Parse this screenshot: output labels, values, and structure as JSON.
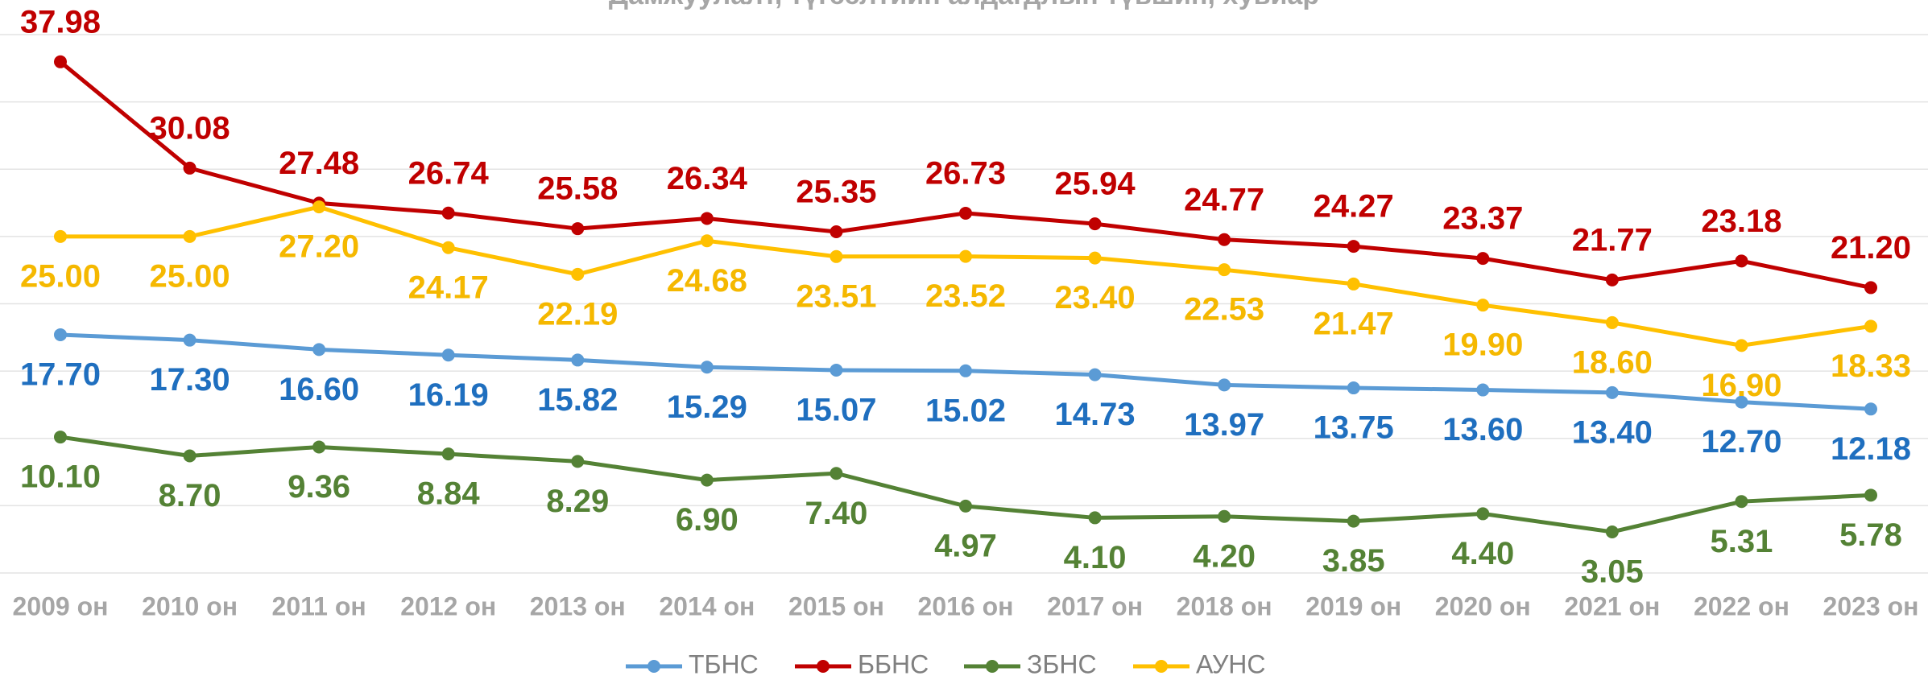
{
  "chart_data": {
    "type": "line",
    "title": "Дамжуулалт, түгээлтийн алдагдлын түвшин, хувиар",
    "categories": [
      "2009 он",
      "2010 он",
      "2011 он",
      "2012 он",
      "2013 он",
      "2014 он",
      "2015 он",
      "2016 он",
      "2017 он",
      "2018 он",
      "2019 он",
      "2020 он",
      "2021 он",
      "2022 он",
      "2023 он"
    ],
    "series": [
      {
        "name": "ТБНС",
        "color": "#5b9bd5",
        "label_color": "#1f6fbf",
        "values": [
          17.7,
          17.3,
          16.6,
          16.19,
          15.82,
          15.29,
          15.07,
          15.02,
          14.73,
          13.97,
          13.75,
          13.6,
          13.4,
          12.7,
          12.18
        ],
        "value_labels": [
          "17.70",
          "17.30",
          "16.60",
          "16.19",
          "15.82",
          "15.29",
          "15.07",
          "15.02",
          "14.73",
          "13.97",
          "13.75",
          "13.60",
          "13.40",
          "12.70",
          "12.18"
        ]
      },
      {
        "name": "ББНС",
        "color": "#c00000",
        "label_color": "#c00000",
        "values": [
          37.98,
          30.08,
          27.48,
          26.74,
          25.58,
          26.34,
          25.35,
          26.73,
          25.94,
          24.77,
          24.27,
          23.37,
          21.77,
          23.18,
          21.2
        ],
        "value_labels": [
          "37.98",
          "30.08",
          "27.48",
          "26.74",
          "25.58",
          "26.34",
          "25.35",
          "26.73",
          "25.94",
          "24.77",
          "24.27",
          "23.37",
          "21.77",
          "23.18",
          "21.20"
        ]
      },
      {
        "name": "ЗБНС",
        "color": "#548235",
        "label_color": "#548235",
        "values": [
          10.1,
          8.7,
          9.36,
          8.84,
          8.29,
          6.9,
          7.4,
          4.97,
          4.1,
          4.2,
          3.85,
          4.4,
          3.05,
          5.31,
          5.78
        ],
        "value_labels": [
          "10.10",
          "8.70",
          "9.36",
          "8.84",
          "8.29",
          "6.90",
          "7.40",
          "4.97",
          "4.10",
          "4.20",
          "3.85",
          "4.40",
          "3.05",
          "5.31",
          "5.78"
        ]
      },
      {
        "name": "АУНС",
        "color": "#ffc000",
        "label_color": "#f5b800",
        "values": [
          25.0,
          25.0,
          27.2,
          24.17,
          22.19,
          24.68,
          23.51,
          23.52,
          23.4,
          22.53,
          21.47,
          19.9,
          18.6,
          16.9,
          18.33
        ],
        "value_labels": [
          "25.00",
          "25.00",
          "27.20",
          "24.17",
          "22.19",
          "24.68",
          "23.51",
          "23.52",
          "23.40",
          "22.53",
          "21.47",
          "19.90",
          "18.60",
          "16.90",
          "18.33"
        ]
      }
    ],
    "ylim": [
      0,
      40
    ],
    "yticks": [
      0,
      5,
      10,
      15,
      20,
      25,
      30,
      35,
      40
    ],
    "grid": true,
    "legend": "bottom"
  }
}
